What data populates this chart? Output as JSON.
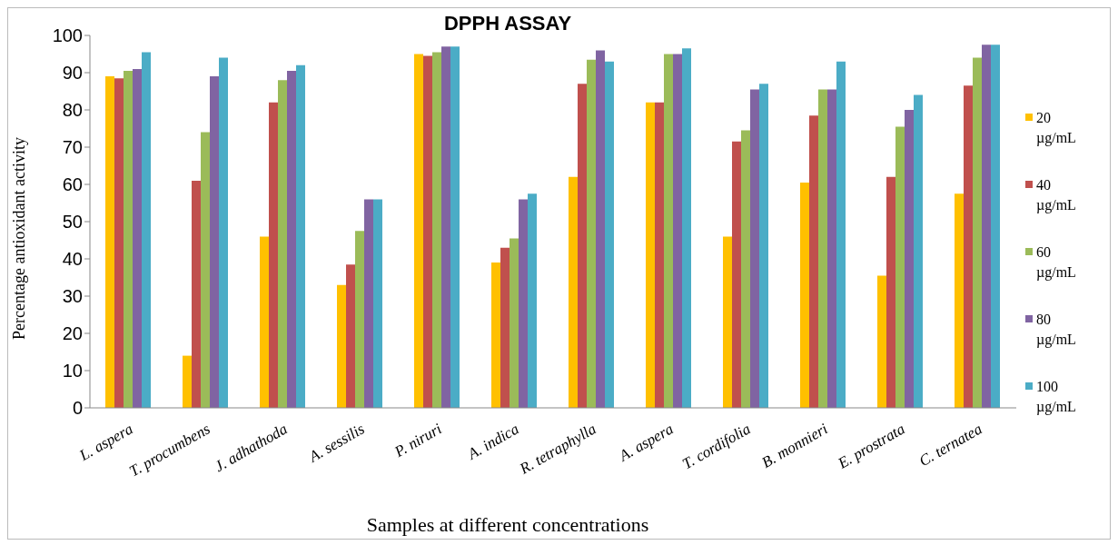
{
  "chart_data": {
    "type": "bar",
    "title": "DPPH ASSAY",
    "xlabel": "Samples at different concentrations",
    "ylabel": "Percentage antioxidant activity",
    "categories": [
      "L. aspera",
      "T. procumbens",
      "J. adhathoda",
      "A. sessilis",
      "P. niruri",
      "A. indica",
      "R. tetraphylla",
      "A. aspera",
      "T. cordifolia",
      "B. monnieri",
      "E. prostrata",
      "C. ternatea"
    ],
    "series": [
      {
        "name": "20 µg/mL",
        "color": "#ffc000",
        "values": [
          89,
          14,
          46,
          33,
          95,
          39,
          62,
          82,
          46,
          60.5,
          35.5,
          57.5
        ]
      },
      {
        "name": "40 µg/mL",
        "color": "#c0504d",
        "values": [
          88.5,
          61,
          82,
          38.5,
          94.5,
          43,
          87,
          82,
          71.5,
          78.5,
          62,
          86.5
        ]
      },
      {
        "name": "60 µg/mL",
        "color": "#9bbb59",
        "values": [
          90.5,
          74,
          88,
          47.5,
          95.5,
          45.5,
          93.5,
          95,
          74.5,
          85.5,
          75.5,
          94
        ]
      },
      {
        "name": "80 µg/mL",
        "color": "#8064a2",
        "values": [
          91,
          89,
          90.5,
          56,
          97,
          56,
          96,
          95,
          85.5,
          85.5,
          80,
          97.5
        ]
      },
      {
        "name": "100 µg/mL",
        "color": "#4bacc6",
        "values": [
          95.5,
          94,
          92,
          56,
          97,
          57.5,
          93,
          96.5,
          87,
          93,
          84,
          97.5
        ]
      }
    ],
    "ylim": [
      0,
      100
    ],
    "yticks": [
      0,
      10,
      20,
      30,
      40,
      50,
      60,
      70,
      80,
      90,
      100
    ],
    "grid": false,
    "legend": "right"
  }
}
